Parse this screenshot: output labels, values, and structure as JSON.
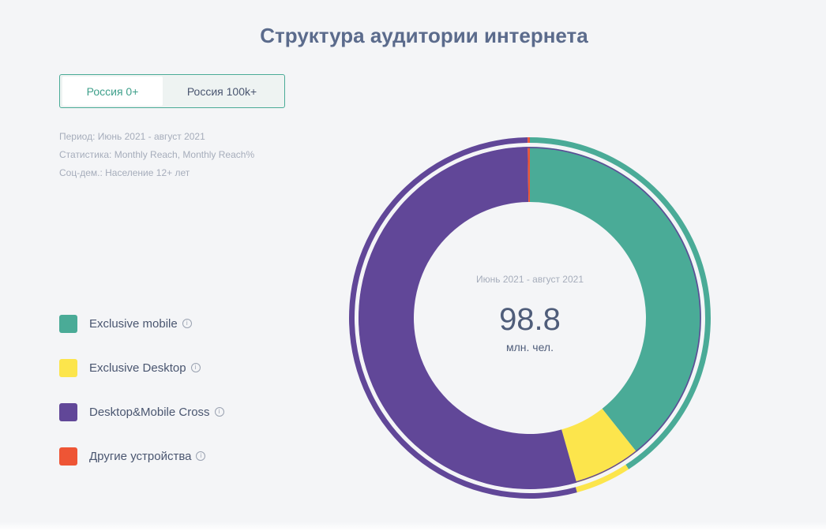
{
  "title": "Структура аудитории интернета",
  "tabs": [
    {
      "label": "Россия 0+",
      "active": true
    },
    {
      "label": "Россия 100k+",
      "active": false
    }
  ],
  "meta": {
    "period": "Период: Июнь 2021 - август 2021",
    "statistic": "Статистика: Monthly Reach, Monthly Reach%",
    "socdem": "Соц-дем.: Население 12+ лет"
  },
  "legend": [
    {
      "label": "Exclusive mobile",
      "color": "#4aab97"
    },
    {
      "label": "Exclusive Desktop",
      "color": "#fce54c"
    },
    {
      "label": "Desktop&Mobile Cross",
      "color": "#614798"
    },
    {
      "label": "Другие устройства",
      "color": "#ee5535"
    }
  ],
  "center": {
    "period": "Июнь 2021 - август 2021",
    "value": "98.8",
    "unit": "млн. чел."
  },
  "chart_data": {
    "type": "pie",
    "variant": "donut",
    "total": 98.8,
    "total_unit": "млн. чел.",
    "categories": [
      "Exclusive mobile",
      "Exclusive Desktop",
      "Desktop&Mobile Cross",
      "Другие устройства"
    ],
    "inner_values": [
      39.3,
      6.3,
      54.2,
      0.2
    ],
    "outer_values": [
      40.8,
      5.0,
      54.0,
      0.2
    ],
    "colors": [
      "#4aab97",
      "#fce54c",
      "#614798",
      "#ee5535"
    ],
    "value_unit": "%"
  }
}
